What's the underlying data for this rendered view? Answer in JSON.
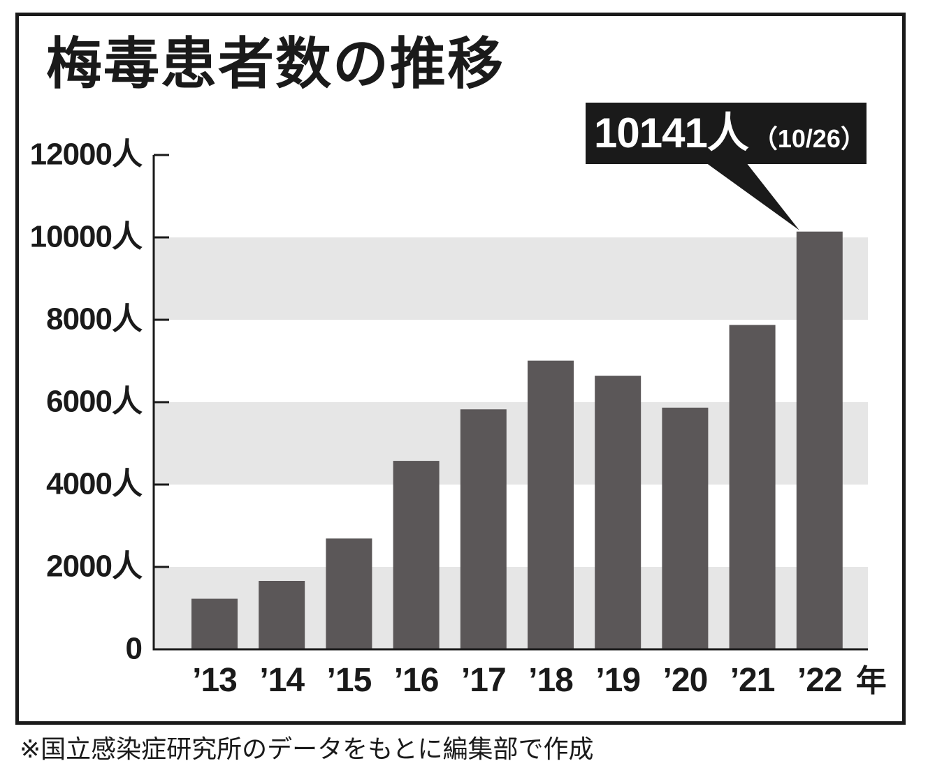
{
  "title": "梅毒患者数の推移",
  "footnote": "※国立感染症研究所のデータをもとに編集部で作成",
  "callout": {
    "value": "10141人",
    "date": "（10/26）"
  },
  "chart_data": {
    "type": "bar",
    "title": "梅毒患者数の推移",
    "categories": [
      "’13",
      "’14",
      "’15",
      "’16",
      "’17",
      "’18",
      "’19",
      "’20",
      "’21",
      "’22"
    ],
    "values": [
      1228,
      1661,
      2690,
      4575,
      5826,
      7007,
      6642,
      5867,
      7875,
      10141
    ],
    "x_unit": "年",
    "y_unit": "人",
    "ylim": [
      0,
      12000
    ],
    "yticks": [
      0,
      2000,
      4000,
      6000,
      8000,
      10000,
      12000
    ],
    "ytick_labels": [
      "0",
      "2000人",
      "4000人",
      "6000人",
      "8000人",
      "10000人",
      "12000人"
    ],
    "grid": "alternating horizontal bands",
    "colors": {
      "bar": "#5b5758",
      "band": "#e6e6e6",
      "text": "#1a1a1a"
    },
    "annotation": {
      "category": "’22",
      "text": "10141人",
      "note": "（10/26）"
    }
  }
}
